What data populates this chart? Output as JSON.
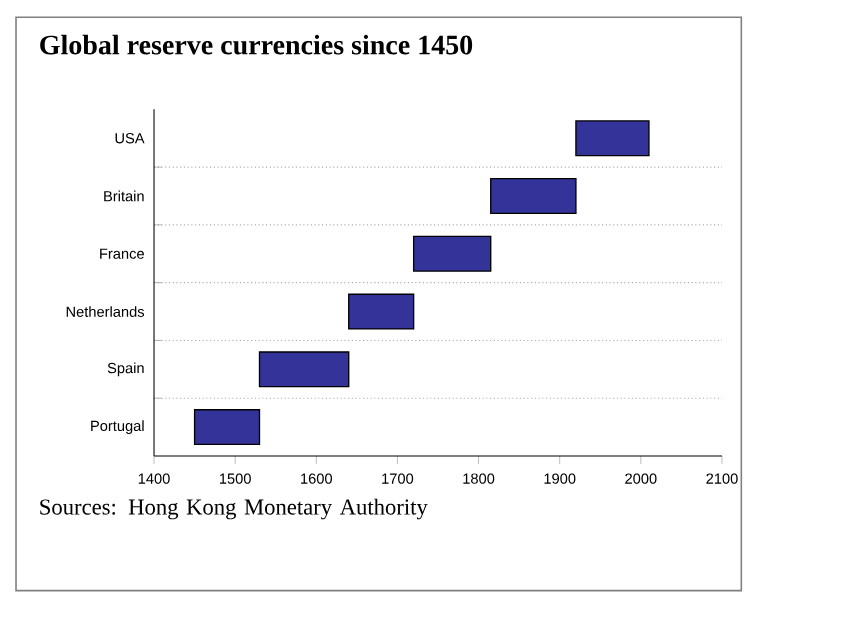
{
  "chart_data": {
    "type": "bar",
    "orientation": "horizontal",
    "title": "Global reserve currencies since 1450",
    "categories": [
      "USA",
      "Britain",
      "France",
      "Netherlands",
      "Spain",
      "Portugal"
    ],
    "base": [
      1920,
      1815,
      1720,
      1640,
      1530,
      1450
    ],
    "values": [
      90,
      105,
      95,
      80,
      110,
      80
    ],
    "color": "#333399",
    "xlim": [
      1400,
      2100
    ],
    "xticks": [
      1400,
      1500,
      1600,
      1700,
      1800,
      1900,
      2000,
      2100
    ],
    "grid": "y",
    "annotations": [
      "Sources: Hong Kong Monetary Authority"
    ]
  }
}
